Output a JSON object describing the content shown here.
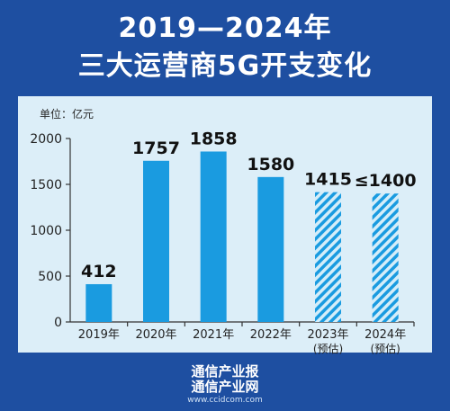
{
  "header": {
    "title_line1": "2019—2024年",
    "title_line2": "三大运营商5G开支变化"
  },
  "unit_label": "单位：亿元",
  "footer": {
    "line1": "通信产业报",
    "line2": "通信产业网",
    "url": "www.ccidcom.com"
  },
  "colors": {
    "background": "#1e4fa1",
    "panel": "#dceef8",
    "bar_solid": "#1a9be0",
    "bar_hatch_light": "#d4edf9"
  },
  "chart_data": {
    "type": "bar",
    "title": "2019—2024年 三大运营商5G开支变化",
    "ylabel": "单位：亿元",
    "xlabel": "",
    "ylim": [
      0,
      2000
    ],
    "yticks": [
      0,
      500,
      1000,
      1500,
      2000
    ],
    "grid": false,
    "categories": [
      "2019年",
      "2020年",
      "2021年",
      "2022年",
      "2023年",
      "2024年"
    ],
    "category_sublabels": [
      "",
      "",
      "",
      "",
      "(预估)",
      "(预估)"
    ],
    "values": [
      412,
      1757,
      1858,
      1580,
      1415,
      1400
    ],
    "value_labels": [
      "412",
      "1757",
      "1858",
      "1580",
      "1415",
      "≤1400"
    ],
    "estimated": [
      false,
      false,
      false,
      false,
      true,
      true
    ]
  }
}
